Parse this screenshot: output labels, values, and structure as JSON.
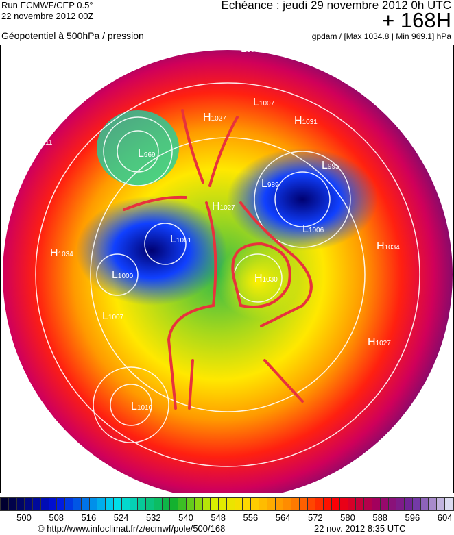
{
  "header": {
    "run": "Run ECMWF/CEP 0.5°",
    "run_date": "22 novembre 2012 00Z",
    "field": "Géopotentiel à 500hPa / pression",
    "valid": "Echéance : jeudi 29 novembre 2012 0h UTC",
    "lead": "+ 168H",
    "units": "gpdam / [Max 1034.8 | Min 969.1] hPa"
  },
  "map": {
    "pressure_centers": [
      {
        "type": "L",
        "value": "1008"
      },
      {
        "type": "H",
        "value": "1027"
      },
      {
        "type": "L",
        "value": "1007"
      },
      {
        "type": "H",
        "value": "1031"
      },
      {
        "type": "L",
        "value": "1011"
      },
      {
        "type": "L",
        "value": "969"
      },
      {
        "type": "L",
        "value": "995"
      },
      {
        "type": "L",
        "value": "989"
      },
      {
        "type": "H",
        "value": "1027"
      },
      {
        "type": "L",
        "value": "1001"
      },
      {
        "type": "L",
        "value": "1006"
      },
      {
        "type": "H",
        "value": "1034"
      },
      {
        "type": "L",
        "value": "1000"
      },
      {
        "type": "H",
        "value": "1030"
      },
      {
        "type": "L",
        "value": "1007"
      },
      {
        "type": "H",
        "value": "1027"
      },
      {
        "type": "L",
        "value": "1010"
      },
      {
        "type": "H",
        "value": "1034"
      }
    ],
    "annotation_color": "#e8323c"
  },
  "colorbar": {
    "ticks": [
      "500",
      "508",
      "516",
      "524",
      "532",
      "540",
      "548",
      "556",
      "564",
      "572",
      "580",
      "588",
      "596",
      "604"
    ]
  },
  "footer": {
    "url": "© http://www.infoclimat.fr/z/ecmwf/pole/500/168",
    "timestamp": "22 nov. 2012  8:35 UTC"
  }
}
